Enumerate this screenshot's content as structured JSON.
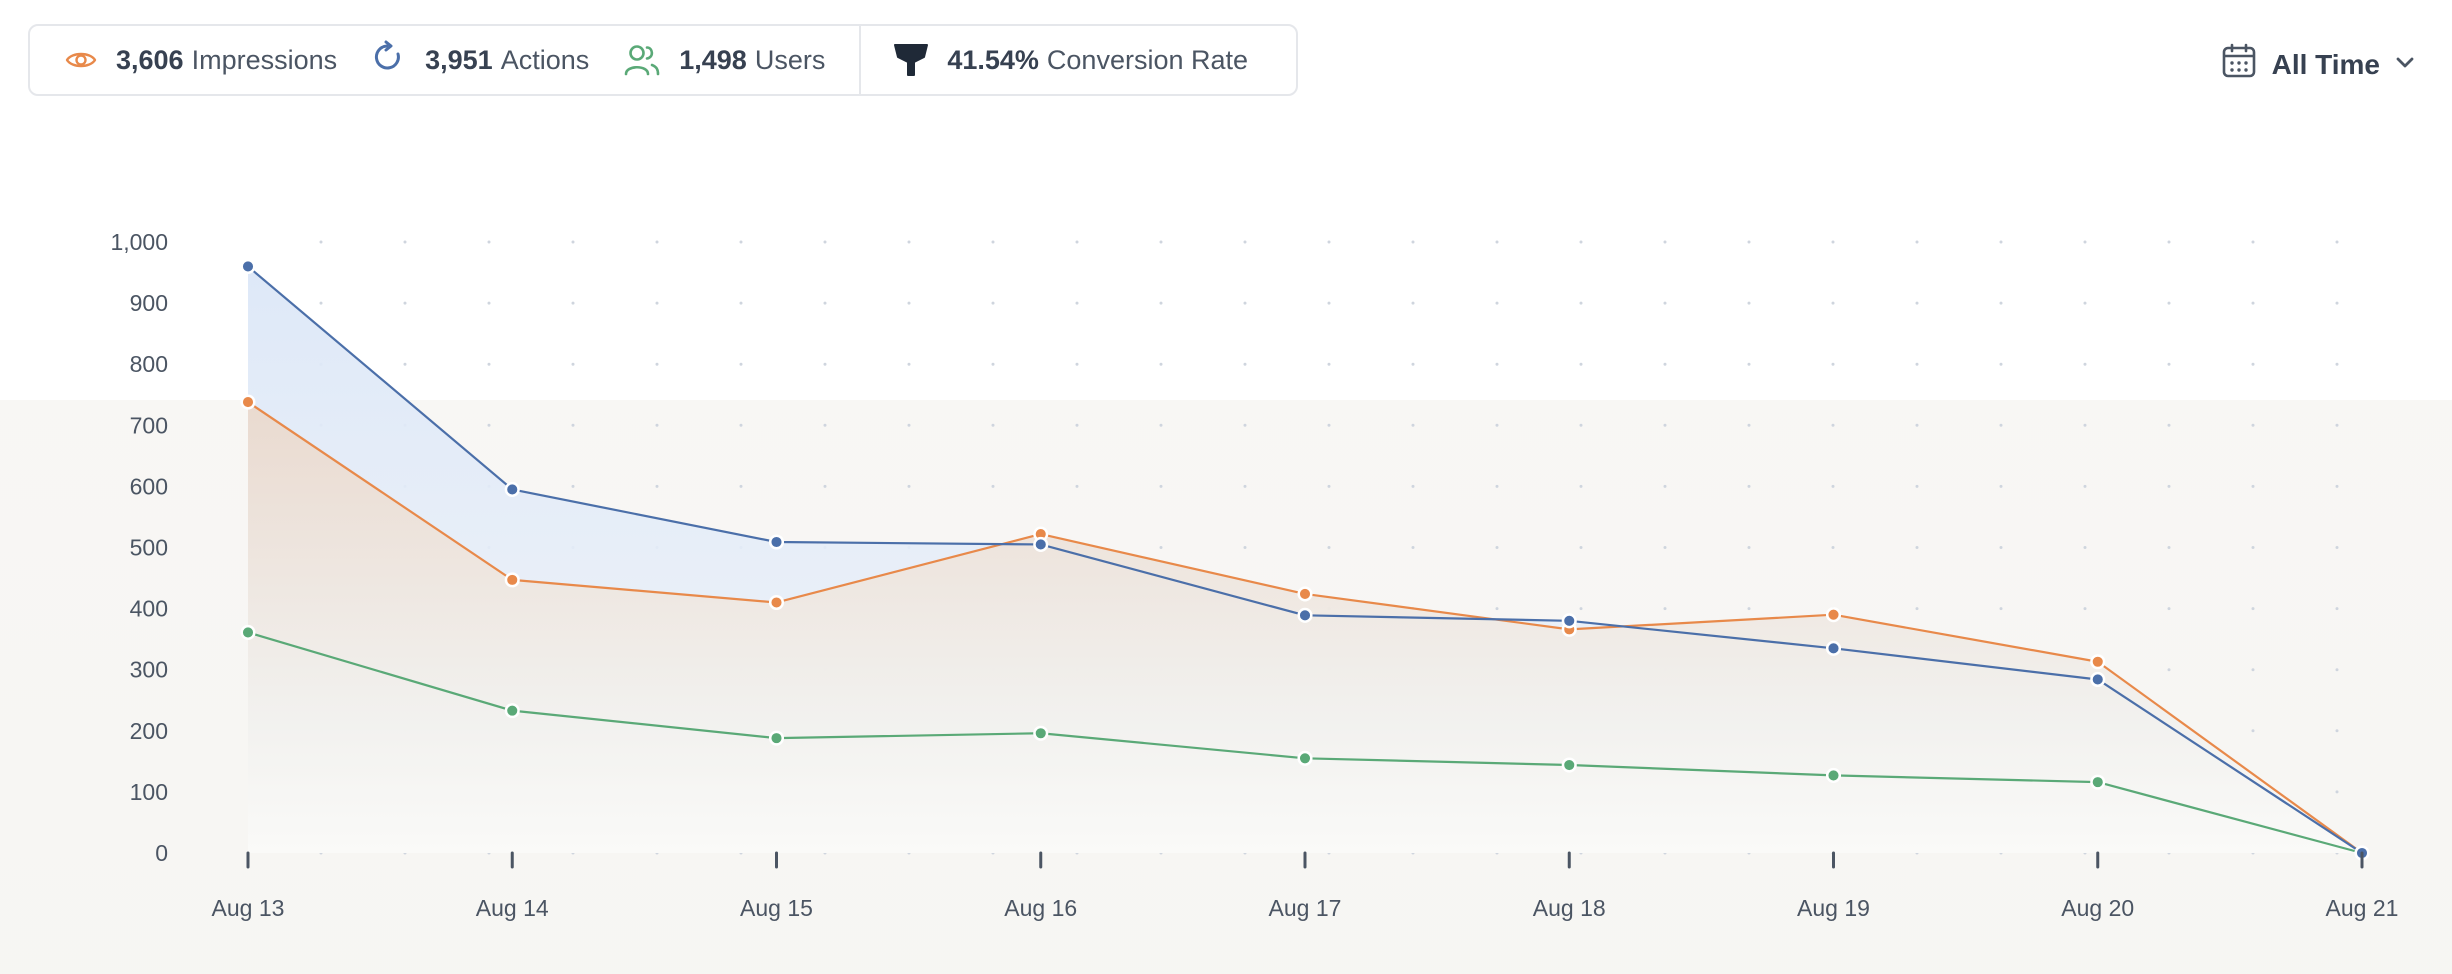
{
  "stats": {
    "impressions": {
      "value": "3,606",
      "label": "Impressions",
      "icon": "eye-icon",
      "color": "#e8894a"
    },
    "actions": {
      "value": "3,951",
      "label": "Actions",
      "icon": "refresh-icon",
      "color": "#4b6fa9"
    },
    "users": {
      "value": "1,498",
      "label": "Users",
      "icon": "users-icon",
      "color": "#5aa977"
    },
    "conversion": {
      "value": "41.54%",
      "label": "Conversion Rate",
      "icon": "funnel-icon",
      "color": "#1f2937"
    }
  },
  "time_filter": {
    "label": "All Time",
    "icon": "calendar-icon"
  },
  "chart_data": {
    "type": "line",
    "categories": [
      "Aug 13",
      "Aug 14",
      "Aug 15",
      "Aug 16",
      "Aug 17",
      "Aug 18",
      "Aug 19",
      "Aug 20",
      "Aug 21"
    ],
    "yticks": [
      "0",
      "100",
      "200",
      "300",
      "400",
      "500",
      "600",
      "700",
      "800",
      "900",
      "1,000"
    ],
    "ylim": [
      0,
      1000
    ],
    "grid": "dotted",
    "series": [
      {
        "name": "Actions",
        "color": "#4b6fa9",
        "values": [
          960,
          595,
          509,
          505,
          389,
          380,
          335,
          284,
          0
        ]
      },
      {
        "name": "Impressions",
        "color": "#e8894a",
        "values": [
          738,
          447,
          410,
          522,
          424,
          366,
          390,
          313,
          0
        ]
      },
      {
        "name": "Users",
        "color": "#5aa977",
        "values": [
          361,
          233,
          188,
          196,
          155,
          144,
          127,
          116,
          0
        ]
      }
    ]
  }
}
